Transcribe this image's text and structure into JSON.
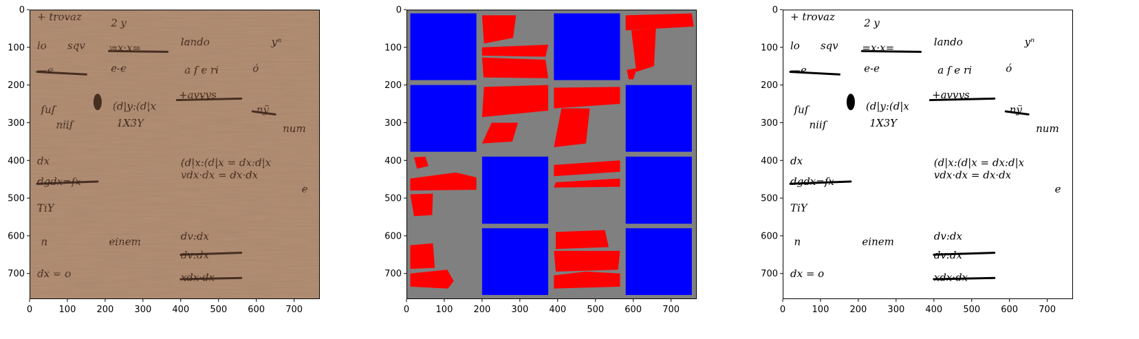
{
  "figure": {
    "panels": [
      {
        "id": "original",
        "content_kind": "manuscript-photo",
        "xlim": [
          0,
          768
        ],
        "ylim_inverted": [
          768,
          0
        ],
        "xticks": [
          0,
          100,
          200,
          300,
          400,
          500,
          600,
          700
        ],
        "yticks": [
          0,
          100,
          200,
          300,
          400,
          500,
          600,
          700
        ],
        "background_color": "#b48f73",
        "ink_color": "#3b2418",
        "handwriting": [
          {
            "x": 20,
            "y": 28,
            "text": "+ trovaz"
          },
          {
            "x": 215,
            "y": 45,
            "text": "2 y"
          },
          {
            "x": 20,
            "y": 105,
            "text": "lo"
          },
          {
            "x": 100,
            "y": 105,
            "text": "sqv"
          },
          {
            "x": 210,
            "y": 110,
            "text": "=x·x="
          },
          {
            "x": 400,
            "y": 95,
            "text": "lando"
          },
          {
            "x": 640,
            "y": 95,
            "text": "yⁿ"
          },
          {
            "x": 20,
            "y": 170,
            "text": "—e"
          },
          {
            "x": 215,
            "y": 165,
            "text": "e-e"
          },
          {
            "x": 410,
            "y": 170,
            "text": "a ſ  e ri"
          },
          {
            "x": 590,
            "y": 165,
            "text": "ó"
          },
          {
            "x": 30,
            "y": 275,
            "text": "ſuſ"
          },
          {
            "x": 220,
            "y": 265,
            "text": "(d|y:(d|x"
          },
          {
            "x": 395,
            "y": 235,
            "text": "+avvys"
          },
          {
            "x": 600,
            "y": 275,
            "text": "nÿ"
          },
          {
            "x": 70,
            "y": 315,
            "text": "niiſ"
          },
          {
            "x": 230,
            "y": 310,
            "text": "1X3Y"
          },
          {
            "x": 670,
            "y": 325,
            "text": "num"
          },
          {
            "x": 400,
            "y": 415,
            "text": "(d|x:(d|x = dx:d|x"
          },
          {
            "x": 400,
            "y": 448,
            "text": "vdx·dx = dx·dx"
          },
          {
            "x": 20,
            "y": 410,
            "text": "dx"
          },
          {
            "x": 20,
            "y": 465,
            "text": "dgdx=ſx"
          },
          {
            "x": 20,
            "y": 535,
            "text": "TiY"
          },
          {
            "x": 210,
            "y": 625,
            "text": "einem"
          },
          {
            "x": 400,
            "y": 610,
            "text": "dv:dx"
          },
          {
            "x": 400,
            "y": 660,
            "text": "dv:dx"
          },
          {
            "x": 30,
            "y": 625,
            "text": "n"
          },
          {
            "x": 20,
            "y": 710,
            "text": "dx = o"
          },
          {
            "x": 400,
            "y": 720,
            "text": "xdx·dx"
          },
          {
            "x": 720,
            "y": 485,
            "text": "e"
          }
        ]
      },
      {
        "id": "patch-mask",
        "content_kind": "mask",
        "xlim": [
          0,
          768
        ],
        "ylim_inverted": [
          768,
          0
        ],
        "xticks": [
          0,
          100,
          200,
          300,
          400,
          500,
          600,
          700
        ],
        "yticks": [
          0,
          100,
          200,
          300,
          400,
          500,
          600,
          700
        ],
        "background_color": "#808080",
        "patch_color": "#0000ff",
        "text_region_color": "#ff0000",
        "blue_patches": [
          [
            10,
            10,
            185,
            187
          ],
          [
            390,
            10,
            565,
            187
          ],
          [
            10,
            200,
            185,
            377
          ],
          [
            580,
            200,
            755,
            377
          ],
          [
            200,
            390,
            375,
            568
          ],
          [
            580,
            390,
            755,
            568
          ],
          [
            200,
            580,
            375,
            757
          ],
          [
            580,
            580,
            755,
            757
          ]
        ],
        "red_regions": [
          [
            [
              200,
              15
            ],
            [
              290,
              15
            ],
            [
              282,
              75
            ],
            [
              205,
              90
            ]
          ],
          [
            [
              200,
              100
            ],
            [
              375,
              93
            ],
            [
              368,
              125
            ],
            [
              200,
              122
            ]
          ],
          [
            [
              200,
              127
            ],
            [
              368,
              133
            ],
            [
              375,
              182
            ],
            [
              204,
              180
            ]
          ],
          [
            [
              205,
              205
            ],
            [
              375,
              200
            ],
            [
              375,
              268
            ],
            [
              200,
              285
            ]
          ],
          [
            [
              225,
              300
            ],
            [
              295,
              300
            ],
            [
              280,
              350
            ],
            [
              200,
              355
            ]
          ],
          [
            [
              390,
              207
            ],
            [
              565,
              205
            ],
            [
              565,
              250
            ],
            [
              390,
              262
            ]
          ],
          [
            [
              410,
              262
            ],
            [
              485,
              262
            ],
            [
              475,
              355
            ],
            [
              390,
              365
            ]
          ],
          [
            [
              580,
              15
            ],
            [
              755,
              10
            ],
            [
              760,
              45
            ],
            [
              580,
              55
            ]
          ],
          [
            [
              595,
              55
            ],
            [
              660,
              50
            ],
            [
              655,
              150
            ],
            [
              608,
              165
            ]
          ],
          [
            [
              583,
              160
            ],
            [
              610,
              155
            ],
            [
              600,
              185
            ],
            [
              588,
              185
            ]
          ],
          [
            [
              20,
              392
            ],
            [
              50,
              390
            ],
            [
              58,
              415
            ],
            [
              28,
              422
            ]
          ],
          [
            [
              10,
              448
            ],
            [
              130,
              432
            ],
            [
              185,
              445
            ],
            [
              185,
              478
            ],
            [
              10,
              480
            ]
          ],
          [
            [
              390,
              412
            ],
            [
              565,
              400
            ],
            [
              565,
              430
            ],
            [
              390,
              442
            ]
          ],
          [
            [
              395,
              458
            ],
            [
              565,
              448
            ],
            [
              565,
              470
            ],
            [
              390,
              472
            ]
          ],
          [
            [
              10,
              490
            ],
            [
              70,
              488
            ],
            [
              68,
              545
            ],
            [
              20,
              548
            ]
          ],
          [
            [
              10,
              625
            ],
            [
              70,
              620
            ],
            [
              75,
              685
            ],
            [
              10,
              688
            ]
          ],
          [
            [
              10,
              700
            ],
            [
              108,
              690
            ],
            [
              125,
              720
            ],
            [
              110,
              740
            ],
            [
              10,
              735
            ]
          ],
          [
            [
              395,
              590
            ],
            [
              440,
              588
            ],
            [
              525,
              585
            ],
            [
              535,
              630
            ],
            [
              395,
              635
            ]
          ],
          [
            [
              390,
              640
            ],
            [
              565,
              640
            ],
            [
              560,
              690
            ],
            [
              395,
              695
            ]
          ],
          [
            [
              390,
              705
            ],
            [
              475,
              695
            ],
            [
              565,
              700
            ],
            [
              565,
              735
            ],
            [
              390,
              740
            ]
          ]
        ]
      },
      {
        "id": "binarized",
        "content_kind": "binarized-text",
        "xlim": [
          0,
          768
        ],
        "ylim_inverted": [
          768,
          0
        ],
        "xticks": [
          0,
          100,
          200,
          300,
          400,
          500,
          600,
          700
        ],
        "yticks": [
          0,
          100,
          200,
          300,
          400,
          500,
          600,
          700
        ],
        "background_color": "#ffffff",
        "ink_color": "#000000"
      }
    ]
  }
}
